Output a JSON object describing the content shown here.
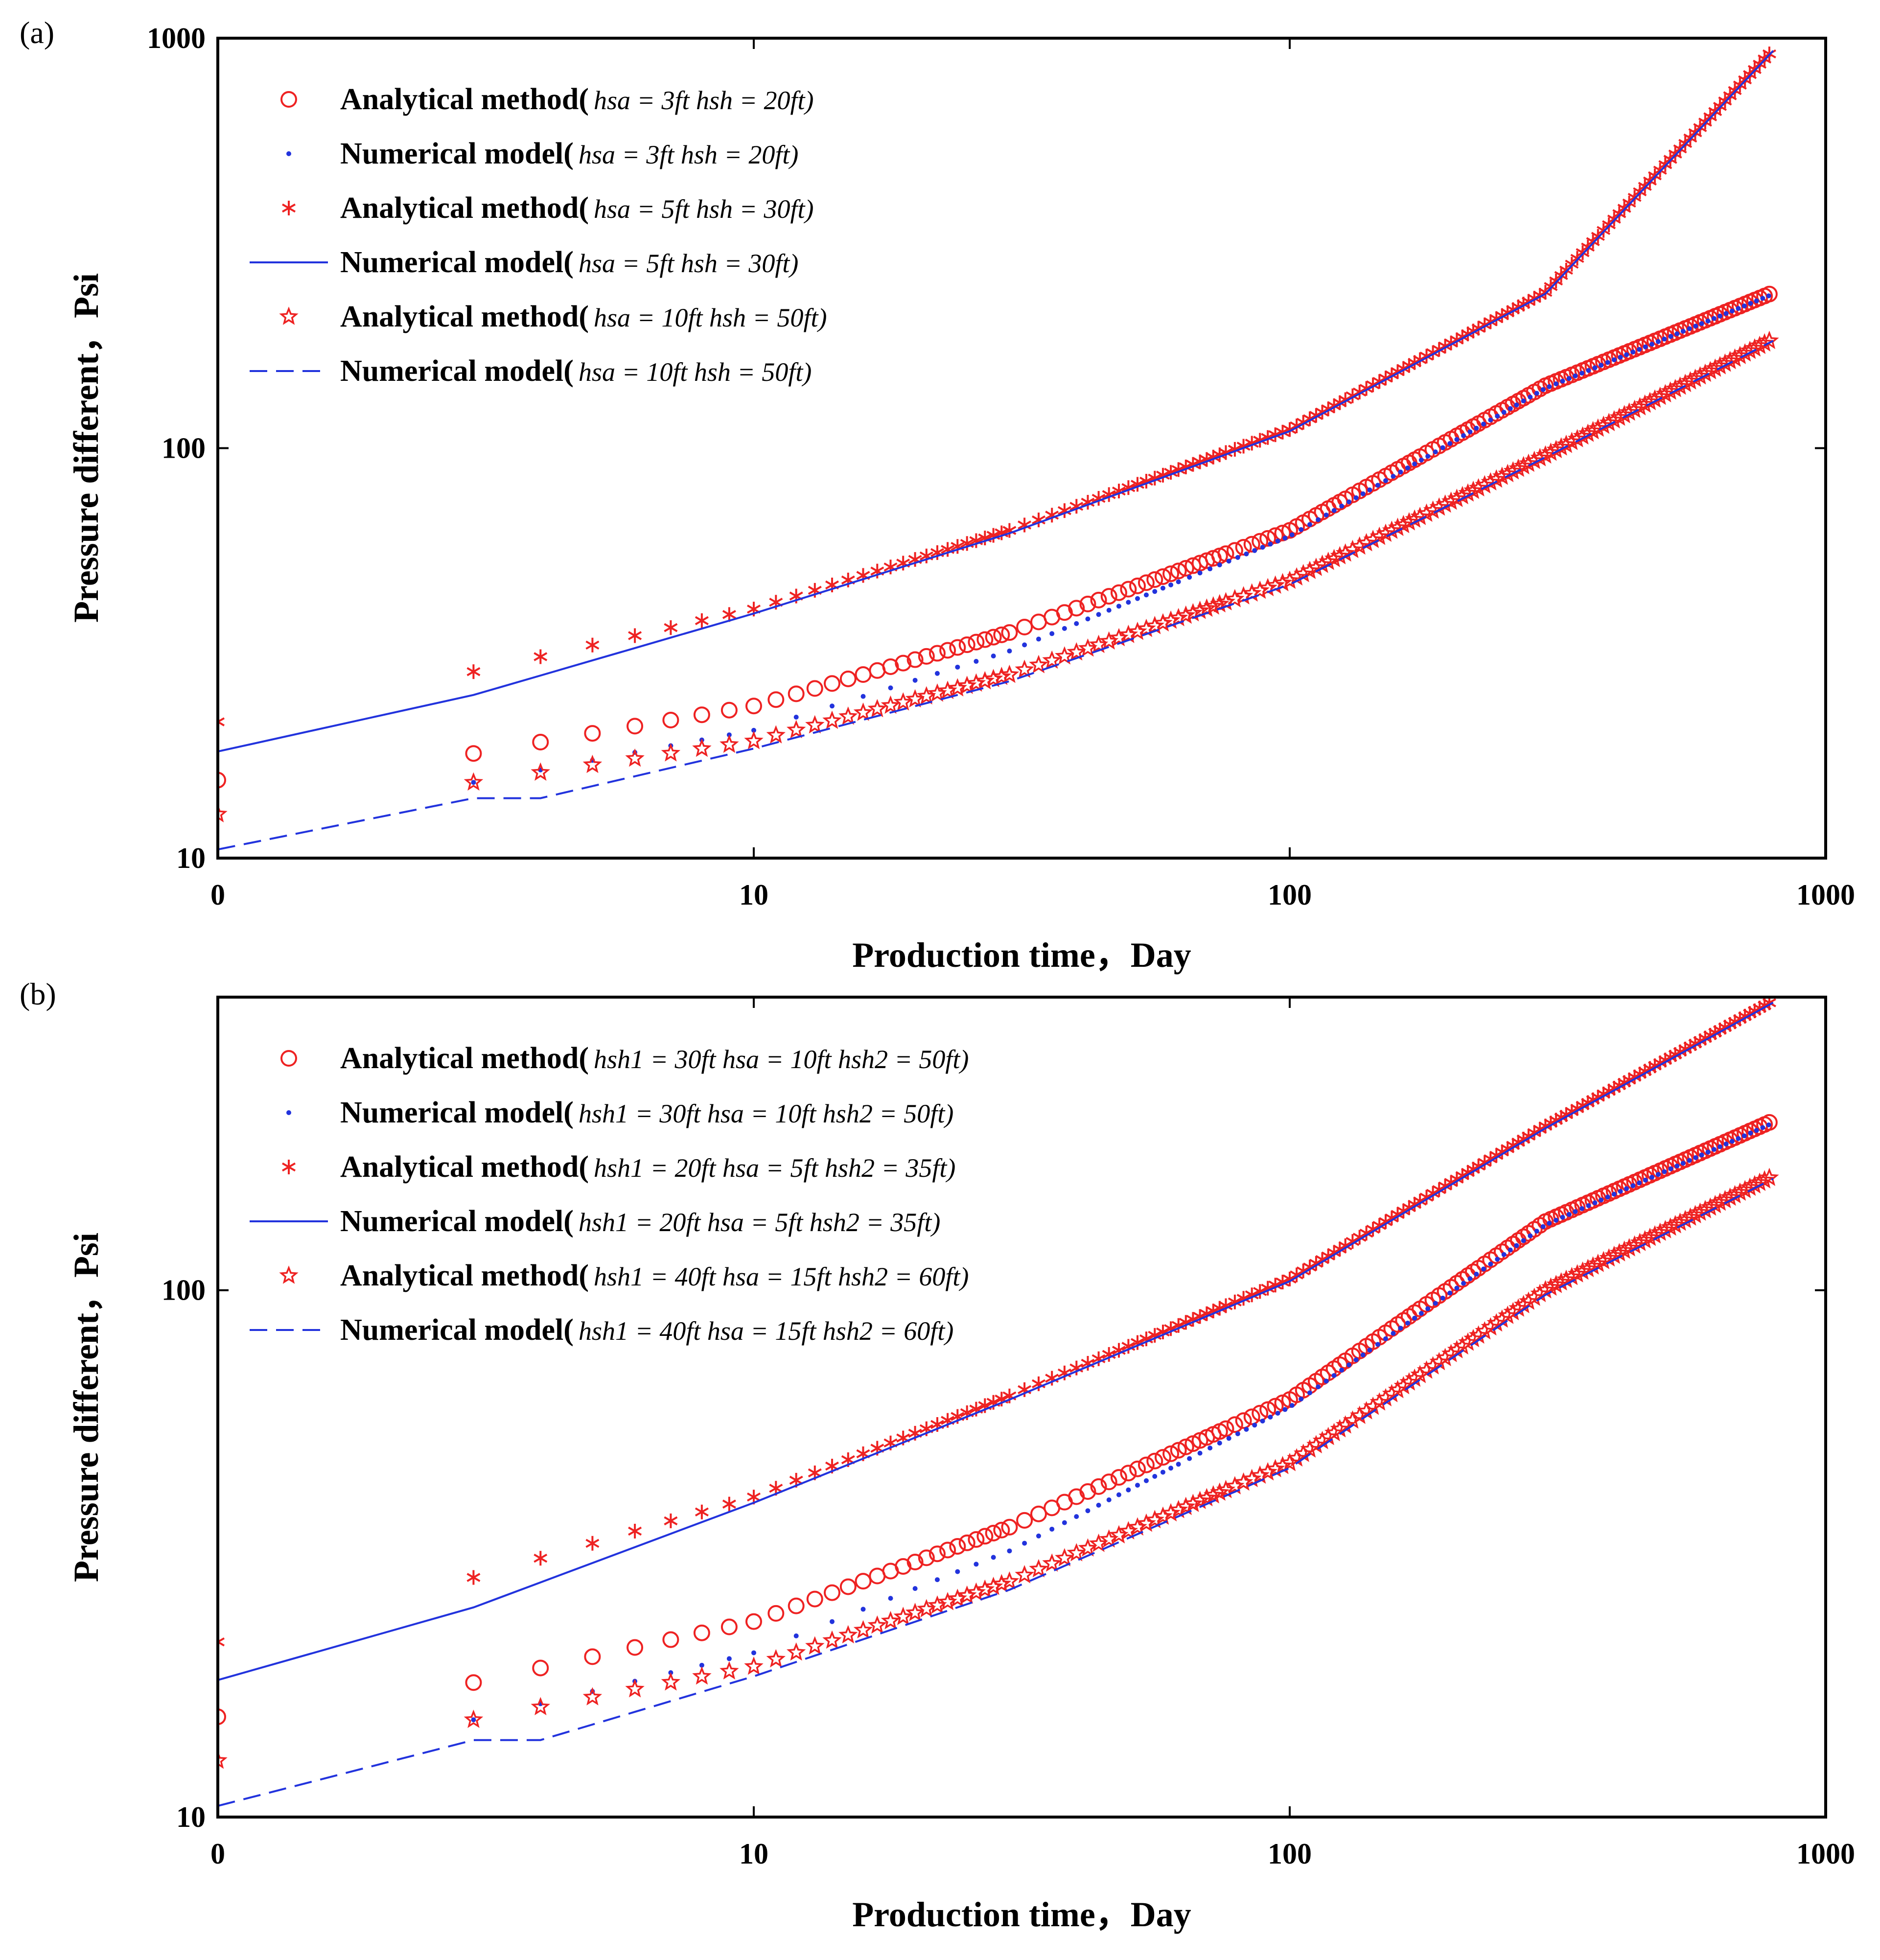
{
  "figure": {
    "colors": {
      "analytical": "#ee2222",
      "numerical": "#2233dd",
      "frame": "#000000"
    }
  },
  "chart_data": [
    {
      "panel_label": "(a)",
      "type": "scatter",
      "xscale": "log",
      "yscale": "log",
      "xlim": [
        1,
        1000
      ],
      "ylim": [
        10,
        1000
      ],
      "xticks": [
        {
          "value": 1,
          "label": "0"
        },
        {
          "value": 10,
          "label": "10"
        },
        {
          "value": 100,
          "label": "100"
        },
        {
          "value": 1000,
          "label": "1000"
        }
      ],
      "yticks": [
        {
          "value": 10,
          "label": "10"
        },
        {
          "value": 100,
          "label": "100"
        },
        {
          "value": 1000,
          "label": "1000"
        }
      ],
      "xlabel": "Production time，Day",
      "ylabel": "Pressure different，Psi",
      "legend_position": "top-left",
      "grid": false,
      "series": [
        {
          "name": "Analytical method(hsa = 3ft  hsh = 20ft)",
          "legend_lead": "Analytical method(",
          "legend_params": "hsa = 3ft  hsh = 20ft)",
          "kind": "analytical",
          "marker": "circle",
          "x": [
            1,
            3,
            10,
            30,
            100,
            300,
            800
          ],
          "y": [
            15.5,
            18,
            23.5,
            35.5,
            63,
            142,
            240
          ]
        },
        {
          "name": "Numerical model(hsa = 3ft  hsh = 20ft)",
          "legend_lead": "Numerical model(",
          "legend_params": "hsa = 3ft  hsh = 20ft)",
          "kind": "numerical",
          "marker": "dot",
          "x": [
            3,
            10,
            30,
            100,
            300,
            800
          ],
          "y": [
            15.3,
            20.5,
            32,
            61,
            140,
            238
          ]
        },
        {
          "name": "Analytical method(hsa = 5ft  hsh = 30ft)",
          "legend_lead": "Analytical method(",
          "legend_params": "hsa = 5ft  hsh = 30ft)",
          "kind": "analytical",
          "marker": "asterisk",
          "x": [
            1,
            3,
            10,
            30,
            100,
            300,
            800
          ],
          "y": [
            21.5,
            28.5,
            40.5,
            63,
            111,
            240,
            940
          ]
        },
        {
          "name": "Numerical model(hsa = 5ft  hsh = 30ft)",
          "legend_lead": "Numerical model(",
          "legend_params": "hsa = 5ft  hsh = 30ft)",
          "kind": "numerical",
          "marker": "solid",
          "x": [
            1,
            3,
            10,
            30,
            100,
            300,
            800
          ],
          "y": [
            18.2,
            25,
            39.5,
            62,
            110,
            238,
            935
          ]
        },
        {
          "name": "Analytical method(hsa = 10ft hsh = 50ft)",
          "legend_lead": "Analytical method(",
          "legend_params": "hsa = 10ft hsh = 50ft)",
          "kind": "analytical",
          "marker": "star",
          "x": [
            1,
            3,
            10,
            30,
            100,
            300,
            800
          ],
          "y": [
            12.8,
            15.3,
            19.3,
            28,
            47.5,
            96,
            185
          ]
        },
        {
          "name": "Numerical model(hsa = 10ft hsh = 50ft)",
          "legend_lead": "Numerical model(",
          "legend_params": "hsa = 10ft hsh = 50ft)",
          "kind": "numerical",
          "marker": "dashed",
          "x": [
            1,
            3,
            4,
            10,
            30,
            100,
            300,
            800
          ],
          "y": [
            10.5,
            14,
            14,
            18.5,
            27,
            46.5,
            95,
            183
          ]
        }
      ]
    },
    {
      "panel_label": "(b)",
      "type": "scatter",
      "xscale": "log",
      "yscale": "log",
      "xlim": [
        1,
        1000
      ],
      "ylim": [
        10,
        360
      ],
      "xticks": [
        {
          "value": 1,
          "label": "0"
        },
        {
          "value": 10,
          "label": "10"
        },
        {
          "value": 100,
          "label": "100"
        },
        {
          "value": 1000,
          "label": "1000"
        }
      ],
      "yticks": [
        {
          "value": 10,
          "label": "10"
        },
        {
          "value": 100,
          "label": "100"
        }
      ],
      "xlabel": "Production time，Day",
      "ylabel": "Pressure different，Psi",
      "legend_position": "top-left",
      "grid": false,
      "series": [
        {
          "name": "Analytical method(hsh1 = 30ft  hsa = 10ft  hsh2 = 50ft)",
          "legend_lead": "Analytical method(",
          "legend_params": "hsh1 = 30ft  hsa = 10ft  hsh2 = 50ft)",
          "kind": "analytical",
          "marker": "circle",
          "x": [
            1,
            3,
            10,
            30,
            100,
            300,
            800
          ],
          "y": [
            15.5,
            18,
            23.5,
            35.5,
            62,
            135,
            210
          ]
        },
        {
          "name": "Numerical model(hsh1 = 30ft  hsa = 10ft  hsh2 = 50ft)",
          "legend_lead": "Numerical model(",
          "legend_params": "hsh1 = 30ft  hsa = 10ft  hsh2 = 50ft)",
          "kind": "numerical",
          "marker": "dot",
          "x": [
            3,
            10,
            30,
            100,
            300,
            800
          ],
          "y": [
            15.3,
            20.5,
            32,
            60,
            133,
            208
          ]
        },
        {
          "name": "Analytical method(hsh1 = 20ft   hsa = 5ft   hsh2 = 35ft)",
          "legend_lead": "Analytical method(",
          "legend_params": "hsh1 = 20ft   hsa = 5ft   hsh2 = 35ft)",
          "kind": "analytical",
          "marker": "asterisk",
          "x": [
            1,
            3,
            10,
            30,
            100,
            300,
            800
          ],
          "y": [
            21.5,
            28.5,
            40.5,
            63,
            105,
            205,
            355
          ]
        },
        {
          "name": "Numerical model(hsh1 = 20ft   hsa = 5ft   hsh2 = 35ft)",
          "legend_lead": "Numerical model(",
          "legend_params": "hsh1 = 20ft   hsa = 5ft   hsh2 = 35ft)",
          "kind": "numerical",
          "marker": "solid",
          "x": [
            1,
            3,
            10,
            30,
            100,
            300,
            800
          ],
          "y": [
            18.2,
            25,
            39.5,
            62,
            104,
            203,
            352
          ]
        },
        {
          "name": "Analytical method(hsh1 = 40ft  hsa = 15ft  hsh2 = 60ft)",
          "legend_lead": "Analytical method(",
          "legend_params": "hsh1 = 40ft  hsa = 15ft  hsh2 = 60ft)",
          "kind": "analytical",
          "marker": "star",
          "x": [
            1,
            3,
            10,
            30,
            100,
            300,
            800
          ],
          "y": [
            12.8,
            15.3,
            19.3,
            28,
            47,
            100,
            165
          ]
        },
        {
          "name": "Numerical model(hsh1 = 40ft  hsa = 15ft  hsh2 = 60ft)",
          "legend_lead": "Numerical model(",
          "legend_params": "hsh1 = 40ft  hsa = 15ft  hsh2 = 60ft)",
          "kind": "numerical",
          "marker": "dashed",
          "x": [
            1,
            3,
            4,
            10,
            30,
            100,
            300,
            800
          ],
          "y": [
            10.5,
            14,
            14,
            18.5,
            27,
            46,
            98,
            163
          ]
        }
      ]
    }
  ]
}
